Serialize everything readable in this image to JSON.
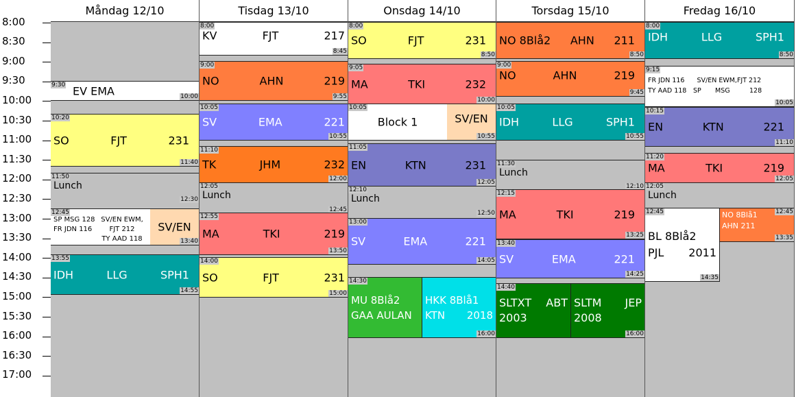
{
  "time_labels": [
    "8:00",
    "8:30",
    "9:00",
    "9:30",
    "10:00",
    "10:30",
    "11:00",
    "11:30",
    "12:00",
    "12:30",
    "13:00",
    "13:30",
    "14:00",
    "14:30",
    "15:00",
    "15:30",
    "16:00",
    "16:30",
    "17:00"
  ],
  "days": [
    {
      "title": "Måndag 12/10"
    },
    {
      "title": "Tisdag 13/10"
    },
    {
      "title": "Onsdag 14/10"
    },
    {
      "title": "Torsdag 15/10"
    },
    {
      "title": "Fredag 16/10"
    }
  ],
  "lessons": {
    "mon_ev": {
      "start": "9:30",
      "end": "10:00",
      "subject": "EV EMA",
      "teacher": "",
      "room": ""
    },
    "mon_so": {
      "start": "10:20",
      "end": "11:40",
      "subject": "SO",
      "teacher": "FJT",
      "room": "231"
    },
    "mon_lunch": {
      "start": "11:50",
      "end": "12:30",
      "label": "Lunch"
    },
    "mon_mix": {
      "start": "12:45",
      "line1a": "SP MSG 128",
      "line1b": "SV/EN EWM,",
      "line2a": "FR JDN 116",
      "line2b": "FJT 212",
      "line3b": "TY AAD 118"
    },
    "mon_sven": {
      "end": "13:40",
      "subject": "SV/EN"
    },
    "mon_idh": {
      "start": "13:55",
      "end": "14:55",
      "subject": "IDH",
      "teacher": "LLG",
      "room": "SPH1"
    },
    "tue_kv": {
      "start": "8:00",
      "end": "8:45",
      "subject": "KV",
      "teacher": "FJT",
      "room": "217"
    },
    "tue_no": {
      "start": "9:00",
      "end": "9:55",
      "subject": "NO",
      "teacher": "AHN",
      "room": "219"
    },
    "tue_sv": {
      "start": "10:05",
      "end": "10:55",
      "subject": "SV",
      "teacher": "EMA",
      "room": "221"
    },
    "tue_tk": {
      "start": "11:10",
      "end": "12:00",
      "subject": "TK",
      "teacher": "JHM",
      "room": "232"
    },
    "tue_lunch": {
      "start": "12:05",
      "end": "12:45",
      "label": "Lunch"
    },
    "tue_ma": {
      "start": "12:55",
      "end": "13:50",
      "subject": "MA",
      "teacher": "TKI",
      "room": "219"
    },
    "tue_so": {
      "start": "14:00",
      "end": "15:00",
      "subject": "SO",
      "teacher": "FJT",
      "room": "231"
    },
    "wed_so": {
      "start": "8:00",
      "end": "8:50",
      "subject": "SO",
      "teacher": "FJT",
      "room": "231"
    },
    "wed_ma": {
      "start": "9:05",
      "end": "10:00",
      "subject": "MA",
      "teacher": "TKI",
      "room": "232"
    },
    "wed_block": {
      "start": "10:05",
      "label": "Block 1"
    },
    "wed_sven": {
      "end": "10:55",
      "subject": "SV/EN"
    },
    "wed_en": {
      "start": "11:05",
      "end": "12:05",
      "subject": "EN",
      "teacher": "KTN",
      "room": "231"
    },
    "wed_lunch": {
      "start": "12:10",
      "end": "12:50",
      "label": "Lunch"
    },
    "wed_sv": {
      "start": "13:00",
      "end": "14:05",
      "subject": "SV",
      "teacher": "EMA",
      "room": "221"
    },
    "wed_mu": {
      "start": "14:30",
      "line1": "MU 8Blå2",
      "line2": "GAA  AULAN"
    },
    "wed_hkk": {
      "end": "16:00",
      "line1": "HKK 8Blå1",
      "line2a": "KTN",
      "line2b": "2018"
    },
    "thu_no1": {
      "end": "8:50",
      "subject": "NO 8Blå2",
      "teacher": "AHN",
      "room": "211"
    },
    "thu_no2": {
      "start": "9:00",
      "end": "9:45",
      "subject": "NO",
      "teacher": "AHN",
      "room": "219"
    },
    "thu_idh": {
      "start": "10:05",
      "end": "10:55",
      "subject": "IDH",
      "teacher": "LLG",
      "room": "SPH1"
    },
    "thu_lunch": {
      "start": "11:30",
      "end": "12:10",
      "label": "Lunch"
    },
    "thu_ma": {
      "start": "12:15",
      "end": "13:25",
      "subject": "MA",
      "teacher": "TKI",
      "room": "219"
    },
    "thu_sv": {
      "start": "13:40",
      "end": "14:25",
      "subject": "SV",
      "teacher": "EMA",
      "room": "221"
    },
    "thu_sltxt": {
      "start": "14:40",
      "line1a": "SLTXT",
      "line1b": "ABT",
      "line2": "2003"
    },
    "thu_sltm": {
      "end": "16:00",
      "line1a": "SLTM",
      "line1b": "JEP",
      "line2": "2008"
    },
    "fri_idh": {
      "start": "8:00",
      "end": "8:50",
      "subject": "IDH",
      "teacher": "LLG",
      "room": "SPH1"
    },
    "fri_mix": {
      "start": "9:15",
      "end": "10:05",
      "l1a": "FR JDN  116",
      "l1b": "SV/EN EWM,FJT 212",
      "l2a": "TY AAD 118",
      "l2b": "SP",
      "l2c": "MSG",
      "l2d": "128"
    },
    "fri_en": {
      "start": "10:15",
      "end": "11:10",
      "subject": "EN",
      "teacher": "KTN",
      "room": "221"
    },
    "fri_ma": {
      "start": "11:20",
      "end": "12:05",
      "subject": "MA",
      "teacher": "TKI",
      "room": "219"
    },
    "fri_lunch": {
      "start": "12:05",
      "label": "Lunch"
    },
    "fri_bl": {
      "start": "12:45",
      "end": "14:35",
      "line1": "BL 8Blå2",
      "line2a": "PJL",
      "line2b": "2011"
    },
    "fri_no": {
      "end": "12:45",
      "line1": "NO 8Blå1",
      "line2": "AHN 211",
      "end2": "13:35"
    }
  },
  "colors": {
    "grey": "#c0c0c0",
    "yellow": "#ffff80",
    "orange": "#ff7c3e",
    "salmon": "#ff7878",
    "blue": "#8080ff",
    "teal": "#00a0a0",
    "green": "#33bb33",
    "cyan": "#00e0e8",
    "dgreen": "#007a00",
    "indigo": "#7a7ac8",
    "peach": "#ffd9b0"
  }
}
